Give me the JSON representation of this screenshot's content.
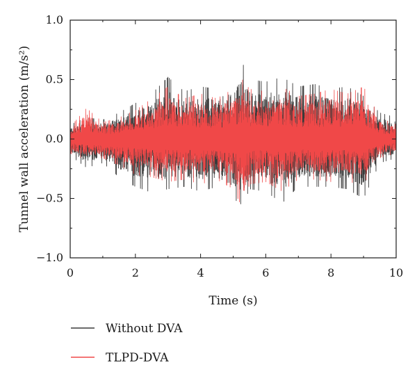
{
  "chart_data": {
    "type": "line",
    "xlabel": "Time (s)",
    "ylabel": "Tunnel wall acceleration (m/s²)",
    "xlim": [
      0,
      10
    ],
    "ylim": [
      -1.0,
      1.0
    ],
    "x_ticks": [
      0,
      2,
      4,
      6,
      8,
      10
    ],
    "x_tick_labels": [
      "0",
      "2",
      "4",
      "6",
      "8",
      "10"
    ],
    "y_ticks": [
      -1.0,
      -0.5,
      0.0,
      0.5,
      1.0
    ],
    "y_tick_labels": [
      "−1.0",
      "−0.5",
      "0.0",
      "0.5",
      "1.0"
    ],
    "grid": false,
    "legend_position": "bottom-left, below plot",
    "series": [
      {
        "name": "Without DVA",
        "color": "#3a3a3a",
        "envelope_time": [
          0,
          0.5,
          1,
          1.5,
          2,
          2.5,
          3,
          3.5,
          4,
          4.5,
          5,
          5.3,
          5.5,
          6,
          6.5,
          7,
          7.5,
          8,
          8.5,
          9,
          9.5,
          10
        ],
        "envelope_max": [
          0.12,
          0.18,
          0.16,
          0.22,
          0.3,
          0.38,
          0.52,
          0.4,
          0.44,
          0.42,
          0.5,
          0.63,
          0.5,
          0.48,
          0.52,
          0.44,
          0.46,
          0.42,
          0.44,
          0.36,
          0.22,
          0.18
        ],
        "envelope_min": [
          -0.14,
          -0.24,
          -0.2,
          -0.32,
          -0.4,
          -0.45,
          -0.42,
          -0.4,
          -0.44,
          -0.4,
          -0.5,
          -0.56,
          -0.42,
          -0.44,
          -0.54,
          -0.4,
          -0.4,
          -0.4,
          -0.42,
          -0.5,
          -0.2,
          -0.16
        ]
      },
      {
        "name": "TLPD-DVA",
        "color": "#f04848",
        "envelope_time": [
          0,
          0.5,
          1,
          1.5,
          2,
          2.5,
          3,
          3.5,
          4,
          4.5,
          5,
          5.3,
          5.5,
          6,
          6.5,
          7,
          7.5,
          8,
          8.5,
          9,
          9.5,
          10
        ],
        "envelope_max": [
          0.1,
          0.26,
          0.14,
          0.18,
          0.24,
          0.34,
          0.44,
          0.34,
          0.38,
          0.34,
          0.42,
          0.5,
          0.42,
          0.4,
          0.44,
          0.36,
          0.38,
          0.42,
          0.38,
          0.44,
          0.18,
          0.12
        ],
        "envelope_min": [
          -0.12,
          -0.18,
          -0.16,
          -0.22,
          -0.3,
          -0.32,
          -0.36,
          -0.34,
          -0.38,
          -0.34,
          -0.42,
          -0.59,
          -0.38,
          -0.36,
          -0.44,
          -0.34,
          -0.34,
          -0.36,
          -0.36,
          -0.38,
          -0.16,
          -0.12
        ]
      }
    ]
  }
}
